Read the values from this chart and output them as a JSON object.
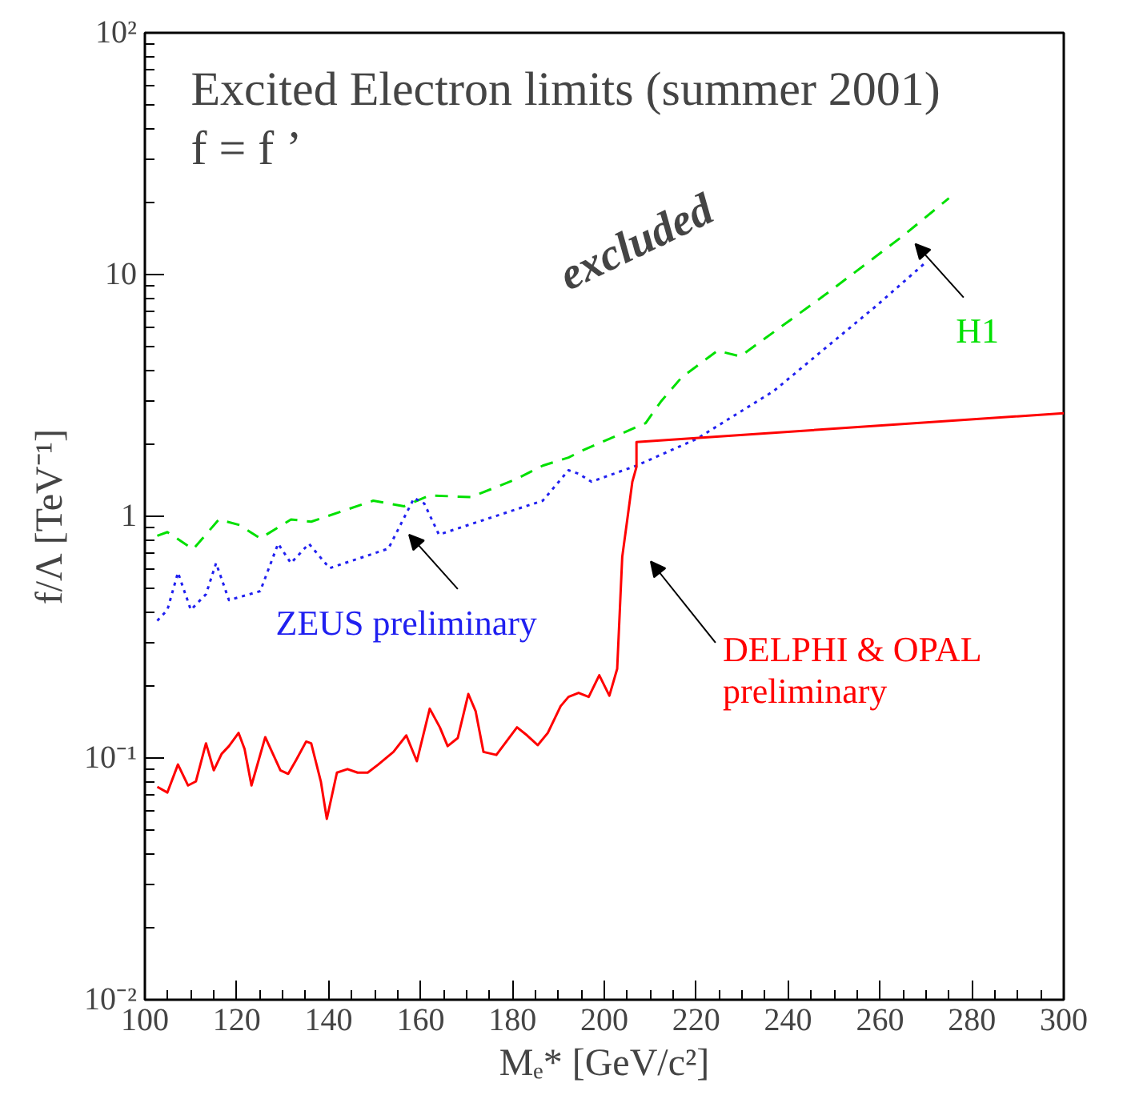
{
  "chart_data": {
    "type": "line",
    "title": "Excited Electron limits (summer 2001)",
    "subtitle": "f = f ’",
    "xlabel": "Mₑ* [GeV/c²]",
    "ylabel": "f/Λ [TeV⁻¹]",
    "log": "y",
    "xlim": [
      100,
      300
    ],
    "ylim": [
      0.01,
      100
    ],
    "xticks": [
      100,
      120,
      140,
      160,
      180,
      200,
      220,
      240,
      260,
      280,
      300
    ],
    "yticks": [
      {
        "value": 0.01,
        "label": "10⁻²"
      },
      {
        "value": 0.1,
        "label": "10⁻¹"
      },
      1,
      10,
      {
        "value": 100,
        "label": "10²"
      }
    ],
    "grid": false,
    "annotations": [
      "excluded"
    ],
    "series": [
      {
        "name": "H1",
        "color": "#00e000",
        "line_style": "dashed",
        "x": [
          102.7,
          104.9,
          110.5,
          116.1,
          120.6,
          125.1,
          131.8,
          136.2,
          149.7,
          156.4,
          162.0,
          171.0,
          181.0,
          186.6,
          192.2,
          195.5,
          209.0,
          212.3,
          216.8,
          224.6,
          229.6,
          248.1,
          264.9,
          275.0
        ],
        "values": [
          0.83,
          0.86,
          0.73,
          0.97,
          0.92,
          0.81,
          0.97,
          0.95,
          1.16,
          1.1,
          1.22,
          1.2,
          1.43,
          1.62,
          1.75,
          1.88,
          2.43,
          2.98,
          3.75,
          4.84,
          4.59,
          8.26,
          14.4,
          20.7
        ]
      },
      {
        "name": "ZEUS preliminary",
        "color": "#2020f0",
        "line_style": "dotted",
        "x": [
          102.7,
          104.9,
          107.2,
          110.0,
          113.3,
          115.5,
          118.3,
          125.1,
          129.0,
          131.8,
          135.7,
          140.2,
          153.0,
          158.6,
          160.8,
          164.0,
          186.6,
          192.2,
          194.4,
          197.2,
          207.0,
          220.1,
          236.9,
          248.1,
          259.3,
          269.9
        ],
        "values": [
          0.37,
          0.41,
          0.585,
          0.41,
          0.476,
          0.64,
          0.45,
          0.49,
          0.77,
          0.64,
          0.77,
          0.61,
          0.735,
          1.19,
          1.13,
          0.84,
          1.16,
          1.55,
          1.5,
          1.39,
          1.62,
          2.09,
          3.3,
          4.96,
          7.45,
          11.2
        ]
      },
      {
        "name": "DELPHI & OPAL preliminary",
        "color": "#ff0000",
        "line_style": "solid",
        "x": [
          102.7,
          104.9,
          107.2,
          109.4,
          111.1,
          113.3,
          115.0,
          116.7,
          118.3,
          120.4,
          121.7,
          123.2,
          126.2,
          129.5,
          131.2,
          132.9,
          135.1,
          136.2,
          138.3,
          139.6,
          141.8,
          144.1,
          146.3,
          148.5,
          150.8,
          154.1,
          156.9,
          159.2,
          162.0,
          164.2,
          165.9,
          168.1,
          170.4,
          172.0,
          173.7,
          176.5,
          181.0,
          183.2,
          185.5,
          187.7,
          190.5,
          192.2,
          194.4,
          196.6,
          198.9,
          201.1,
          202.8,
          203.9,
          205.0,
          206.1,
          207.0,
          207.0,
          300
        ],
        "values": [
          0.076,
          0.072,
          0.094,
          0.077,
          0.08,
          0.115,
          0.089,
          0.104,
          0.112,
          0.127,
          0.109,
          0.077,
          0.122,
          0.089,
          0.086,
          0.098,
          0.117,
          0.115,
          0.08,
          0.056,
          0.087,
          0.09,
          0.087,
          0.087,
          0.094,
          0.106,
          0.124,
          0.097,
          0.16,
          0.134,
          0.112,
          0.121,
          0.184,
          0.156,
          0.106,
          0.103,
          0.134,
          0.124,
          0.113,
          0.127,
          0.164,
          0.179,
          0.186,
          0.179,
          0.22,
          0.181,
          0.234,
          0.68,
          0.97,
          1.39,
          1.6,
          2.03,
          2.67
        ]
      }
    ]
  }
}
